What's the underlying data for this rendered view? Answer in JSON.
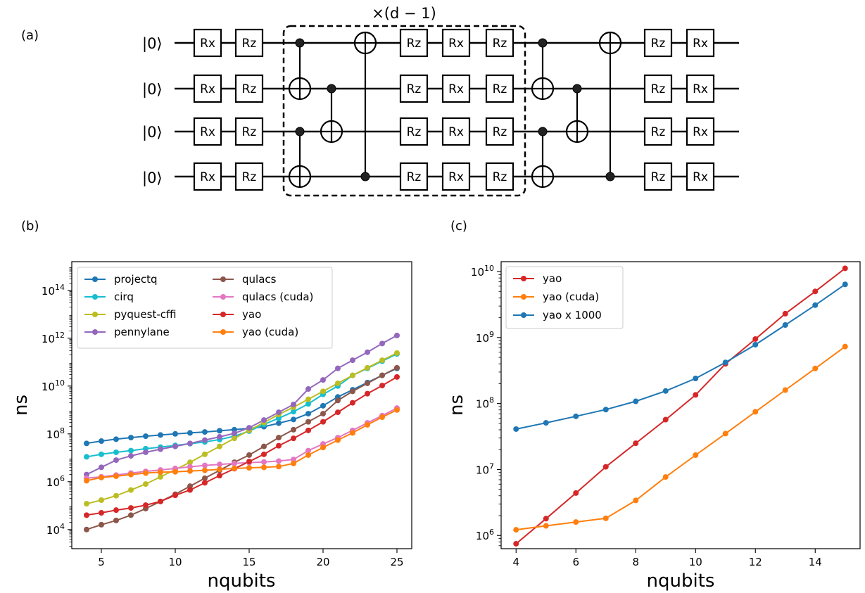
{
  "panel_labels": {
    "a": "(a)",
    "b": "(b)",
    "c": "(c)"
  },
  "circuit": {
    "qubit_labels": [
      "|0⟩",
      "|0⟩",
      "|0⟩",
      "|0⟩"
    ],
    "repeat_label": "×(d − 1)",
    "gate_rx": "Rx",
    "gate_rz": "Rz"
  },
  "chart_data": [
    {
      "type": "line",
      "xlabel": "nqubits",
      "ylabel": "ns",
      "xlim": [
        3.0,
        26.0
      ],
      "ylim_exp": [
        3.2,
        15.2
      ],
      "log_y": true,
      "xticks": [
        5,
        10,
        15,
        20,
        25
      ],
      "ytick_exps": [
        4,
        6,
        8,
        10,
        12,
        14
      ],
      "legend_position": "top-left",
      "x": [
        4,
        5,
        6,
        7,
        8,
        9,
        10,
        11,
        12,
        13,
        14,
        15,
        16,
        17,
        18,
        19,
        20,
        21,
        22,
        23,
        24,
        25
      ],
      "series": [
        {
          "name": "projectq",
          "color": "#1f77b4",
          "values": [
            40000000.0,
            50000000.0,
            60000000.0,
            70000000.0,
            80000000.0,
            90000000.0,
            100000000.0,
            110000000.0,
            120000000.0,
            135000000.0,
            150000000.0,
            170000000.0,
            200000000.0,
            280000000.0,
            400000000.0,
            700000000.0,
            1500000000.0,
            3500000000.0,
            7000000000.0,
            14000000000.0,
            28000000000.0,
            55000000000.0
          ]
        },
        {
          "name": "cirq",
          "color": "#17becf",
          "values": [
            11000000.0,
            14000000.0,
            17000000.0,
            20000000.0,
            24000000.0,
            28000000.0,
            33000000.0,
            39000000.0,
            46000000.0,
            58000000.0,
            80000000.0,
            130000000.0,
            250000000.0,
            450000000.0,
            850000000.0,
            1800000000.0,
            4500000000.0,
            10000000000.0,
            28000000000.0,
            55000000000.0,
            110000000000.0,
            220000000000.0
          ]
        },
        {
          "name": "pyquest-cffi",
          "color": "#bcbd22",
          "values": [
            120000.0,
            170000.0,
            260000.0,
            450000.0,
            800000.0,
            1600000.0,
            3200000.0,
            6500000.0,
            14000000.0,
            30000000.0,
            65000000.0,
            140000000.0,
            300000000.0,
            650000000.0,
            1300000000.0,
            2800000000.0,
            6000000000.0,
            13000000000.0,
            28000000000.0,
            58000000000.0,
            120000000000.0,
            240000000000.0
          ]
        },
        {
          "name": "pennylane",
          "color": "#9467bd",
          "values": [
            2000000.0,
            4000000.0,
            8000000.0,
            12000000.0,
            17000000.0,
            23000000.0,
            30000000.0,
            40000000.0,
            55000000.0,
            75000000.0,
            105000000.0,
            180000000.0,
            380000000.0,
            800000000.0,
            1700000000.0,
            7500000000.0,
            18000000000.0,
            55000000000.0,
            120000000000.0,
            260000000000.0,
            600000000000.0,
            1300000000000.0
          ]
        },
        {
          "name": "qulacs",
          "color": "#8c564b",
          "values": [
            10000.0,
            16000.0,
            24000.0,
            40000.0,
            75000.0,
            150000.0,
            300000.0,
            650000.0,
            1400000.0,
            3000000.0,
            6500000.0,
            13000000.0,
            30000000.0,
            70000000.0,
            150000000.0,
            320000000.0,
            700000000.0,
            2500000000.0,
            6000000000.0,
            13000000000.0,
            28000000000.0,
            58000000000.0
          ]
        },
        {
          "name": "qulacs (cuda)",
          "color": "#e377c2",
          "values": [
            1400000.0,
            1600000.0,
            1900000.0,
            2300000.0,
            2700000.0,
            3100000.0,
            3600000.0,
            4200000.0,
            4800000.0,
            5300000.0,
            5800000.0,
            6300000.0,
            6700000.0,
            7300000.0,
            8500000.0,
            20000000.0,
            38000000.0,
            70000000.0,
            140000000.0,
            290000000.0,
            580000000.0,
            1200000000.0
          ]
        },
        {
          "name": "yao",
          "color": "#d62728",
          "values": [
            40000.0,
            50000.0,
            65000.0,
            80000.0,
            105000.0,
            150000.0,
            270000.0,
            450000.0,
            900000.0,
            1800000.0,
            3500000.0,
            7000000.0,
            14000000.0,
            32000000.0,
            65000000.0,
            140000000.0,
            320000000.0,
            800000000.0,
            2000000000.0,
            4800000000.0,
            10500000000.0,
            24000000000.0
          ]
        },
        {
          "name": "yao (cuda)",
          "color": "#ff7f0e",
          "values": [
            1100000.0,
            1500000.0,
            1700000.0,
            2000000.0,
            2300000.0,
            2500000.0,
            2600000.0,
            2800000.0,
            3000000.0,
            3300000.0,
            3600000.0,
            3800000.0,
            4000000.0,
            4300000.0,
            5800000.0,
            13000000.0,
            27000000.0,
            55000000.0,
            110000000.0,
            240000000.0,
            500000000.0,
            1000000000.0
          ]
        }
      ]
    },
    {
      "type": "line",
      "xlabel": "nqubits",
      "ylabel": "ns",
      "xlim": [
        3.5,
        15.5
      ],
      "ylim_exp": [
        5.8,
        10.15
      ],
      "log_y": true,
      "xticks": [
        4,
        6,
        8,
        10,
        12,
        14
      ],
      "ytick_exps": [
        6,
        7,
        8,
        9,
        10
      ],
      "legend_position": "top-left",
      "x": [
        4,
        5,
        6,
        7,
        8,
        9,
        10,
        11,
        12,
        13,
        14,
        15
      ],
      "series": [
        {
          "name": "yao",
          "color": "#d62728",
          "values": [
            750000.0,
            1800000.0,
            4400000.0,
            11000000.0,
            25000000.0,
            57000000.0,
            135000000.0,
            400000000.0,
            950000000.0,
            2300000000.0,
            5000000000.0,
            11200000000.0
          ]
        },
        {
          "name": "yao (cuda)",
          "color": "#ff7f0e",
          "values": [
            1220000.0,
            1400000.0,
            1600000.0,
            1820000.0,
            3400000.0,
            7700000.0,
            16500000.0,
            35000000.0,
            75000000.0,
            160000000.0,
            340000000.0,
            730000000.0
          ]
        },
        {
          "name": "yao x 1000",
          "color": "#1f77b4",
          "values": [
            41000000.0,
            51000000.0,
            64000000.0,
            81000000.0,
            108000000.0,
            155000000.0,
            240000000.0,
            420000000.0,
            780000000.0,
            1550000000.0,
            3100000000.0,
            6400000000.0
          ]
        }
      ]
    }
  ]
}
